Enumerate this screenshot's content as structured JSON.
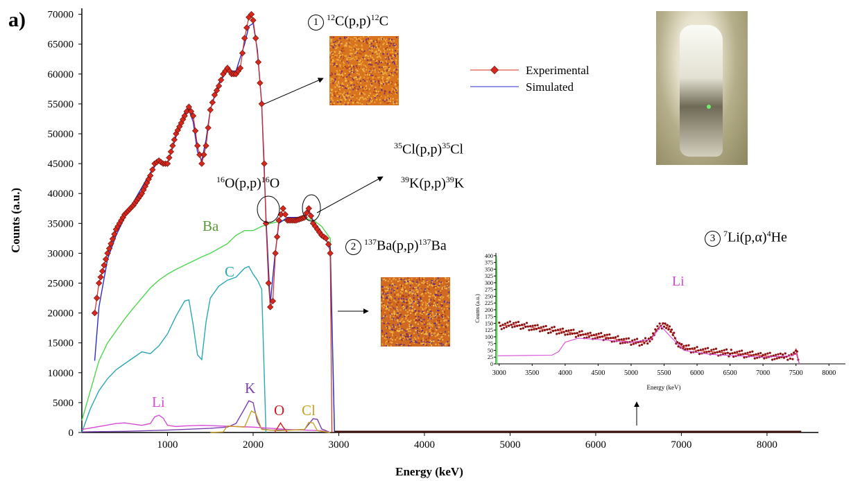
{
  "panel_label": "a)",
  "colors": {
    "experimental": "#d8281e",
    "simulated": "#2b2bd0",
    "Ba": "#4cd64c",
    "C": "#2aa6b5",
    "Li": "#d64ad6",
    "K": "#7a3fb0",
    "O": "#cc1f1f",
    "Cl": "#c9a020"
  },
  "legend": {
    "experimental": "Experimental",
    "simulated": "Simulated"
  },
  "annotations": {
    "carbon": {
      "circle": "1",
      "pre_sup": "12",
      "reaction": "C(p,p)",
      "post_sup": "12",
      "element": "C"
    },
    "oxygen": {
      "pre_sup": "16",
      "reaction": "O(p,p)",
      "post_sup": "16",
      "element": "O"
    },
    "chlorine": {
      "pre_sup": "35",
      "reaction": "Cl(p,p)",
      "post_sup": "35",
      "element": "Cl"
    },
    "potassium": {
      "pre_sup": "39",
      "reaction": "K(p,p)",
      "post_sup": "39",
      "element": "K"
    },
    "barium": {
      "circle": "2",
      "pre_sup": "137",
      "reaction": "Ba(p,p)",
      "post_sup": "137",
      "element": "Ba"
    },
    "lithium": {
      "circle": "3",
      "pre_sup": "7",
      "reaction": "Li(p,α)",
      "post_sup": "4",
      "element": "He"
    }
  },
  "element_labels": {
    "Ba": "Ba",
    "C": "C",
    "Li": "Li",
    "K": "K",
    "O": "O",
    "Cl": "Cl"
  },
  "chart_data": [
    {
      "type": "line",
      "xlabel": "Energy (keV)",
      "ylabel": "Counts (a.u.)",
      "xlim": [
        0,
        8600
      ],
      "ylim": [
        0,
        71000
      ],
      "xticks": [
        1000,
        2000,
        3000,
        4000,
        5000,
        6000,
        7000,
        8000
      ],
      "yticks": [
        0,
        5000,
        10000,
        15000,
        20000,
        25000,
        30000,
        35000,
        40000,
        45000,
        50000,
        55000,
        60000,
        65000,
        70000
      ],
      "series": [
        {
          "name": "Experimental",
          "color_key": "experimental",
          "x": [
            150,
            200,
            300,
            400,
            500,
            600,
            700,
            800,
            850,
            900,
            950,
            1000,
            1100,
            1200,
            1250,
            1300,
            1350,
            1400,
            1450,
            1500,
            1550,
            1600,
            1650,
            1700,
            1750,
            1800,
            1850,
            1900,
            1950,
            1980,
            2000,
            2030,
            2060,
            2100,
            2130,
            2150,
            2180,
            2200,
            2230,
            2260,
            2300,
            2350,
            2400,
            2500,
            2600,
            2650,
            2700,
            2750,
            2800,
            2850,
            2880,
            2900,
            2920
          ],
          "y": [
            20000,
            25000,
            30000,
            34000,
            36500,
            38000,
            40000,
            43000,
            45000,
            45500,
            45000,
            45000,
            50000,
            53000,
            54500,
            53000,
            48000,
            45000,
            48000,
            54000,
            56500,
            58000,
            60000,
            61000,
            60000,
            60000,
            61000,
            66000,
            69500,
            70000,
            69000,
            66000,
            62000,
            55000,
            45000,
            35000,
            25000,
            21000,
            22000,
            30000,
            35500,
            37500,
            35500,
            35500,
            36000,
            37500,
            35000,
            34000,
            33000,
            32500,
            31500,
            30000,
            0
          ]
        },
        {
          "name": "Simulated",
          "color_key": "simulated",
          "x": [
            150,
            200,
            300,
            400,
            500,
            600,
            700,
            800,
            900,
            1000,
            1100,
            1200,
            1250,
            1300,
            1350,
            1400,
            1450,
            1500,
            1600,
            1700,
            1800,
            1900,
            1950,
            2000,
            2050,
            2100,
            2150,
            2200,
            2250,
            2300,
            2400,
            2500,
            2600,
            2650,
            2700,
            2800,
            2900,
            2950
          ],
          "y": [
            12000,
            21000,
            29000,
            33000,
            36000,
            38500,
            41000,
            43500,
            45500,
            45000,
            49500,
            53500,
            54000,
            52000,
            47000,
            45500,
            49000,
            54000,
            58500,
            60500,
            60500,
            65000,
            68000,
            68500,
            64000,
            55000,
            36000,
            21500,
            29000,
            35000,
            36000,
            36000,
            36000,
            37000,
            35500,
            33500,
            31000,
            0
          ]
        },
        {
          "name": "Ba",
          "color_key": "Ba",
          "x": [
            0,
            100,
            200,
            300,
            400,
            500,
            600,
            700,
            800,
            900,
            1000,
            1100,
            1200,
            1300,
            1400,
            1500,
            1600,
            1700,
            1800,
            1900,
            2000,
            2100,
            2200,
            2300,
            2400,
            2500,
            2600,
            2700,
            2800,
            2900,
            2950
          ],
          "y": [
            2000,
            7000,
            12000,
            15000,
            17000,
            19000,
            20800,
            22500,
            24200,
            25500,
            26500,
            27300,
            28000,
            28700,
            29400,
            30000,
            30800,
            31600,
            33000,
            33800,
            33800,
            34500,
            35000,
            35300,
            35600,
            35800,
            35800,
            35600,
            34500,
            32500,
            0
          ]
        },
        {
          "name": "C",
          "color_key": "C",
          "x": [
            0,
            100,
            200,
            300,
            400,
            500,
            600,
            700,
            800,
            900,
            1000,
            1100,
            1200,
            1250,
            1300,
            1350,
            1400,
            1450,
            1500,
            1600,
            1700,
            1800,
            1900,
            1950,
            2000,
            2050,
            2100,
            2150
          ],
          "y": [
            0,
            4000,
            7000,
            9000,
            10500,
            11500,
            12500,
            13500,
            13200,
            14500,
            16500,
            19500,
            22000,
            22200,
            18000,
            13000,
            12200,
            18500,
            22500,
            24500,
            25500,
            26000,
            27500,
            27800,
            26500,
            25500,
            24000,
            0
          ]
        },
        {
          "name": "Li",
          "color_key": "Li",
          "x": [
            0,
            200,
            400,
            500,
            600,
            700,
            800,
            850,
            900,
            950,
            1000,
            1100,
            1200,
            1400,
            1600,
            1800,
            2000,
            2200,
            2400,
            2600,
            2800,
            2900
          ],
          "y": [
            500,
            1000,
            1500,
            1600,
            1400,
            1200,
            1500,
            2600,
            2900,
            2400,
            1200,
            1000,
            1100,
            1200,
            1100,
            1000,
            900,
            700,
            500,
            400,
            300,
            0
          ]
        },
        {
          "name": "K",
          "color_key": "K",
          "x": [
            0,
            500,
            1000,
            1500,
            1700,
            1800,
            1900,
            1950,
            2000,
            2050,
            2100,
            2200,
            2400,
            2600,
            2700,
            2750,
            2800,
            2900
          ],
          "y": [
            100,
            200,
            400,
            700,
            900,
            1500,
            4000,
            5300,
            5000,
            1800,
            600,
            400,
            400,
            500,
            2300,
            2200,
            600,
            0
          ]
        },
        {
          "name": "O",
          "color_key": "O",
          "x": [
            2250,
            2290,
            2320,
            2350,
            2400
          ],
          "y": [
            0,
            900,
            1600,
            900,
            0
          ]
        },
        {
          "name": "Cl",
          "color_key": "Cl",
          "x": [
            1500,
            1650,
            1700,
            1900,
            1980,
            2030,
            2100,
            2300,
            2600,
            2650,
            2700,
            2750,
            2800,
            2900
          ],
          "y": [
            0,
            100,
            1100,
            900,
            3600,
            3200,
            500,
            300,
            500,
            1700,
            1600,
            300,
            200,
            0
          ]
        }
      ]
    },
    {
      "type": "line",
      "xlabel": "Energy (keV)",
      "ylabel": "Counts (a.u.)",
      "xlim": [
        2950,
        8250
      ],
      "ylim": [
        0,
        410
      ],
      "xticks": [
        3000,
        3500,
        4000,
        4500,
        5000,
        5500,
        6000,
        6500,
        7000,
        7500,
        8000
      ],
      "yticks": [
        0,
        25,
        50,
        75,
        100,
        125,
        150,
        175,
        200,
        225,
        250,
        275,
        300,
        325,
        350,
        375,
        400
      ],
      "element_label": "Li",
      "series": [
        {
          "name": "experimental",
          "color_key": "experimental",
          "x": [
            3000,
            3200,
            3400,
            3600,
            3800,
            4000,
            4200,
            4400,
            4600,
            4800,
            5000,
            5200,
            5300,
            5400,
            5500,
            5600,
            5700,
            5800,
            6000,
            6200,
            6500,
            7000,
            7300,
            7450,
            7500,
            7550
          ],
          "y": [
            140,
            145,
            140,
            130,
            125,
            120,
            110,
            105,
            100,
            90,
            80,
            80,
            95,
            130,
            150,
            125,
            80,
            60,
            50,
            45,
            40,
            30,
            25,
            30,
            55,
            0
          ]
        },
        {
          "name": "fit",
          "color_key": "Li",
          "x": [
            2980,
            3800,
            3900,
            4000,
            4200,
            4500,
            5000,
            5300,
            5450,
            5600,
            5800,
            6200,
            7000,
            7450,
            7500,
            7550
          ],
          "y": [
            30,
            32,
            45,
            80,
            95,
            90,
            80,
            90,
            140,
            100,
            50,
            35,
            25,
            30,
            40,
            0
          ]
        },
        {
          "name": "green",
          "color_key": "Ba",
          "x": [
            2955,
            2960,
            2965,
            2970
          ],
          "y": [
            0,
            400,
            350,
            0
          ]
        }
      ]
    }
  ]
}
